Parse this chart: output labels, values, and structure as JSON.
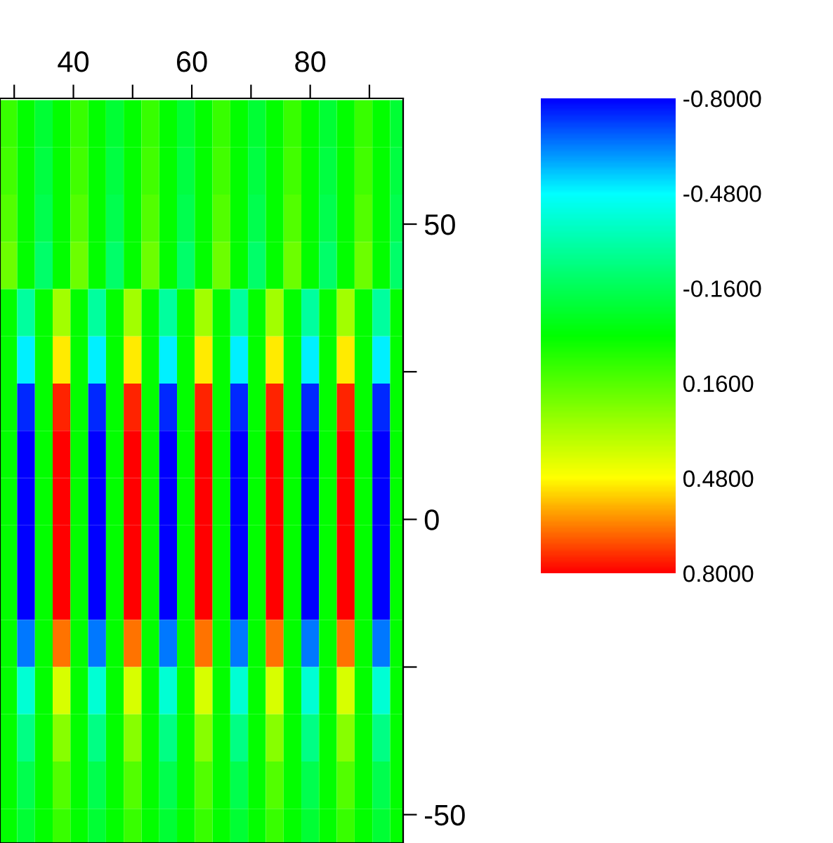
{
  "chart_data": {
    "type": "heatmap",
    "x": [
      29,
      32,
      35,
      38,
      41,
      44,
      47,
      50,
      53,
      56,
      59,
      62,
      65,
      68,
      71,
      74,
      77,
      80,
      83,
      86,
      89,
      92,
      95
    ],
    "y": [
      67,
      59,
      51,
      43,
      35,
      27,
      19,
      11,
      3,
      -5,
      -13,
      -21,
      -29,
      -37,
      -45,
      -53
    ],
    "cells": [
      [
        0.1,
        0,
        -0.1,
        0,
        0.1,
        0,
        -0.1,
        0,
        0.1,
        0,
        -0.1,
        0,
        0.1,
        0,
        -0.1,
        0,
        0.1,
        0,
        -0.1,
        0,
        0.1,
        0,
        -0.1
      ],
      [
        0.12,
        0,
        -0.12,
        0,
        0.12,
        0,
        -0.12,
        0,
        0.12,
        0,
        -0.12,
        0,
        0.12,
        0,
        -0.12,
        0,
        0.12,
        0,
        -0.12,
        0,
        0.12,
        0,
        -0.12
      ],
      [
        0.15,
        0,
        -0.15,
        0,
        0.15,
        0,
        -0.15,
        0,
        0.15,
        0,
        -0.15,
        0,
        0.15,
        0,
        -0.15,
        0,
        0.15,
        0,
        -0.15,
        0,
        0.15,
        0,
        -0.15
      ],
      [
        0.2,
        0,
        -0.2,
        0,
        0.2,
        0,
        -0.2,
        0,
        0.2,
        0,
        -0.2,
        0,
        0.2,
        0,
        -0.2,
        0,
        0.2,
        0,
        -0.2,
        0,
        0.2,
        0,
        -0.2
      ],
      [
        0,
        -0.3,
        0,
        0.3,
        0,
        -0.3,
        0,
        0.3,
        0,
        -0.3,
        0,
        0.3,
        0,
        -0.3,
        0,
        0.3,
        0,
        -0.3,
        0,
        0.3,
        0,
        -0.3,
        0
      ],
      [
        0,
        -0.5,
        0,
        0.5,
        0,
        -0.5,
        0,
        0.5,
        0,
        -0.5,
        0,
        0.5,
        0,
        -0.5,
        0,
        0.5,
        0,
        -0.5,
        0,
        0.5,
        0,
        -0.5,
        0
      ],
      [
        0,
        -0.75,
        0,
        0.75,
        0,
        -0.75,
        0,
        0.75,
        0,
        -0.75,
        0,
        0.75,
        0,
        -0.75,
        0,
        0.75,
        0,
        -0.75,
        0,
        0.75,
        0,
        -0.75,
        0
      ],
      [
        0,
        -0.8,
        0,
        0.8,
        0,
        -0.8,
        0,
        0.8,
        0,
        -0.8,
        0,
        0.8,
        0,
        -0.8,
        0,
        0.8,
        0,
        -0.8,
        0,
        0.8,
        0,
        -0.8,
        0
      ],
      [
        0,
        -0.8,
        0,
        0.8,
        0,
        -0.8,
        0,
        0.8,
        0,
        -0.8,
        0,
        0.8,
        0,
        -0.8,
        0,
        0.8,
        0,
        -0.8,
        0,
        0.8,
        0,
        -0.8,
        0
      ],
      [
        0,
        -0.8,
        0,
        0.8,
        0,
        -0.8,
        0,
        0.8,
        0,
        -0.8,
        0,
        0.8,
        0,
        -0.8,
        0,
        0.8,
        0,
        -0.8,
        0,
        0.8,
        0,
        -0.8,
        0
      ],
      [
        0,
        -0.8,
        0,
        0.8,
        0,
        -0.8,
        0,
        0.8,
        0,
        -0.8,
        0,
        0.8,
        0,
        -0.8,
        0,
        0.8,
        0,
        -0.8,
        0,
        0.8,
        0,
        -0.8,
        0
      ],
      [
        0,
        -0.65,
        0,
        0.65,
        0,
        -0.65,
        0,
        0.65,
        0,
        -0.65,
        0,
        0.65,
        0,
        -0.65,
        0,
        0.65,
        0,
        -0.65,
        0,
        0.65,
        0,
        -0.65,
        0
      ],
      [
        0,
        -0.4,
        0,
        0.4,
        0,
        -0.4,
        0,
        0.4,
        0,
        -0.4,
        0,
        0.4,
        0,
        -0.4,
        0,
        0.4,
        0,
        -0.4,
        0,
        0.4,
        0,
        -0.4,
        0
      ],
      [
        0,
        -0.25,
        0,
        0.25,
        0,
        -0.25,
        0,
        0.25,
        0,
        -0.25,
        0,
        0.25,
        0,
        -0.25,
        0,
        0.25,
        0,
        -0.25,
        0,
        0.25,
        0,
        -0.25,
        0
      ],
      [
        0,
        -0.15,
        0,
        0.15,
        0,
        -0.15,
        0,
        0.15,
        0,
        -0.15,
        0,
        0.15,
        0,
        -0.15,
        0,
        0.15,
        0,
        -0.15,
        0,
        0.15,
        0,
        -0.15,
        0
      ],
      [
        0,
        -0.1,
        0,
        0.1,
        0,
        -0.1,
        0,
        0.1,
        0,
        -0.1,
        0,
        0.1,
        0,
        -0.1,
        0,
        0.1,
        0,
        -0.1,
        0,
        0.1,
        0,
        -0.1,
        0
      ]
    ],
    "xlim": [
      27.6,
      95.7
    ],
    "ylim": [
      -54.8,
      71.3
    ],
    "xticks": [
      {
        "value": 30,
        "label": null
      },
      40,
      {
        "value": 50,
        "label": null
      },
      60,
      {
        "value": 70,
        "label": null
      },
      80,
      {
        "value": 90,
        "label": null
      }
    ],
    "yticks": [
      -50,
      {
        "value": -25,
        "label": null
      },
      0,
      {
        "value": 25,
        "label": null
      },
      50
    ],
    "clim": [
      -0.8,
      0.8
    ],
    "cticks": [
      {
        "value": -0.8,
        "label": "-0.8000"
      },
      {
        "value": -0.48,
        "label": "-0.4800"
      },
      {
        "value": -0.16,
        "label": "-0.1600"
      },
      {
        "value": 0.16,
        "label": "0.1600"
      },
      {
        "value": 0.48,
        "label": "0.4800"
      },
      {
        "value": 0.8,
        "label": "0.8000"
      }
    ]
  }
}
